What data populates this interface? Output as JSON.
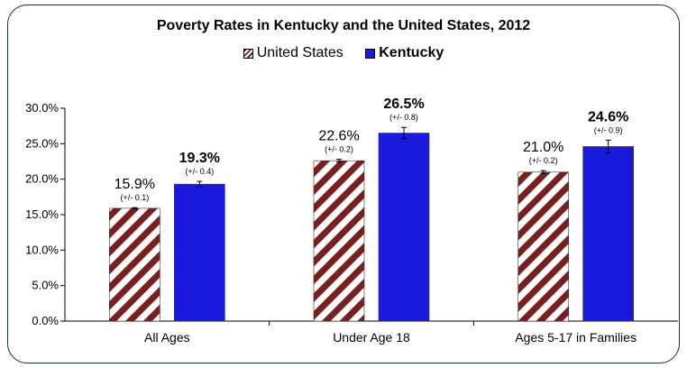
{
  "colors": {
    "us_stripe": "#7a1f1f",
    "kentucky": "#1a1adf",
    "frame": "#1a2a5a"
  },
  "chart_data": {
    "type": "bar",
    "title": "Poverty Rates in Kentucky and the United States, 2012",
    "categories": [
      "All Ages",
      "Under Age 18",
      "Ages 5-17 in Families"
    ],
    "series": [
      {
        "name": "United States",
        "values": [
          15.9,
          22.6,
          21.0
        ],
        "value_labels": [
          "15.9%",
          "22.6%",
          "21.0%"
        ],
        "errors": [
          0.1,
          0.2,
          0.2
        ],
        "error_labels": [
          "(+/- 0.1)",
          "(+/- 0.2)",
          "(+/- 0.2)"
        ],
        "fill": "diagonal-stripe-maroon"
      },
      {
        "name": "Kentucky",
        "values": [
          19.3,
          26.5,
          24.6
        ],
        "value_labels": [
          "19.3%",
          "26.5%",
          "24.6%"
        ],
        "errors": [
          0.4,
          0.8,
          0.9
        ],
        "error_labels": [
          "(+/- 0.4)",
          "(+/- 0.8)",
          "(+/- 0.9)"
        ],
        "fill": "solid-blue"
      }
    ],
    "y_ticks": [
      "0.0%",
      "5.0%",
      "10.0%",
      "15.0%",
      "20.0%",
      "25.0%",
      "30.0%"
    ],
    "ylim": [
      0,
      30
    ],
    "y_tick_step": 5,
    "xlabel": "",
    "ylabel": "",
    "grid": false,
    "legend_position": "top-center"
  }
}
